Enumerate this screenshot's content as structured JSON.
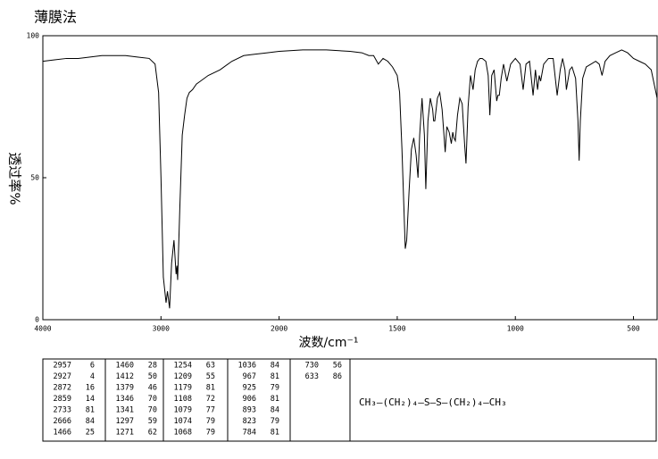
{
  "chart_data": {
    "type": "line",
    "title": "薄膜法",
    "ylabel": "透过率%",
    "xlabel": "波数/cm⁻¹",
    "xlim": [
      4000,
      400
    ],
    "x_scale_break": 2000,
    "xticks": [
      4000,
      3000,
      2000,
      1500,
      1000,
      500
    ],
    "ylim": [
      0,
      100
    ],
    "yticks": [
      0,
      50,
      100
    ],
    "color": "#000000",
    "x": [
      4000,
      3900,
      3800,
      3700,
      3600,
      3500,
      3400,
      3300,
      3200,
      3100,
      3050,
      3020,
      3000,
      2980,
      2957,
      2945,
      2927,
      2910,
      2890,
      2872,
      2865,
      2859,
      2840,
      2820,
      2800,
      2780,
      2760,
      2733,
      2700,
      2666,
      2600,
      2500,
      2400,
      2300,
      2200,
      2100,
      2000,
      1900,
      1800,
      1700,
      1650,
      1620,
      1600,
      1580,
      1560,
      1540,
      1520,
      1500,
      1490,
      1480,
      1466,
      1460,
      1450,
      1440,
      1430,
      1420,
      1412,
      1405,
      1395,
      1385,
      1379,
      1370,
      1360,
      1350,
      1346,
      1341,
      1330,
      1320,
      1310,
      1297,
      1290,
      1280,
      1271,
      1265,
      1260,
      1254,
      1245,
      1235,
      1225,
      1215,
      1209,
      1200,
      1190,
      1179,
      1170,
      1160,
      1150,
      1140,
      1125,
      1115,
      1108,
      1100,
      1090,
      1079,
      1074,
      1068,
      1060,
      1050,
      1036,
      1020,
      1000,
      980,
      967,
      955,
      940,
      925,
      915,
      906,
      899,
      893,
      880,
      860,
      840,
      823,
      810,
      800,
      790,
      784,
      770,
      760,
      745,
      735,
      730,
      725,
      715,
      700,
      680,
      660,
      645,
      633,
      620,
      600,
      575,
      550,
      525,
      500,
      475,
      450,
      425,
      400
    ],
    "values": [
      91,
      91.5,
      92,
      92,
      92.5,
      93,
      93,
      93,
      92.5,
      92,
      90,
      80,
      50,
      15,
      6,
      10,
      4,
      20,
      28,
      16,
      19,
      14,
      40,
      65,
      72,
      78,
      80,
      81,
      83,
      84,
      86,
      88,
      91,
      93,
      93.5,
      94,
      94.5,
      95,
      95,
      94.5,
      94,
      93,
      93,
      90,
      92,
      91,
      89,
      86,
      80,
      60,
      25,
      28,
      45,
      60,
      64,
      58,
      50,
      65,
      78,
      65,
      46,
      70,
      78,
      74,
      70,
      70,
      78,
      80,
      74,
      59,
      68,
      66,
      62,
      66,
      64,
      63,
      72,
      78,
      76,
      62,
      55,
      75,
      86,
      81,
      88,
      91,
      92,
      92,
      91,
      86,
      72,
      86,
      88,
      77,
      79,
      79,
      85,
      90,
      84,
      90,
      92,
      90,
      81,
      90,
      91,
      79,
      88,
      81,
      86,
      84,
      90,
      92,
      92,
      79,
      88,
      92,
      88,
      81,
      88,
      89,
      85,
      70,
      56,
      70,
      85,
      89,
      90,
      91,
      90,
      86,
      91,
      93,
      94,
      95,
      94,
      92,
      91,
      90,
      88,
      78
    ]
  },
  "peak_table": [
    [
      [
        2957,
        6
      ],
      [
        2927,
        4
      ],
      [
        2872,
        16
      ],
      [
        2859,
        14
      ],
      [
        2733,
        81
      ],
      [
        2666,
        84
      ],
      [
        1466,
        25
      ]
    ],
    [
      [
        1460,
        28
      ],
      [
        1412,
        50
      ],
      [
        1379,
        46
      ],
      [
        1346,
        70
      ],
      [
        1341,
        70
      ],
      [
        1297,
        59
      ],
      [
        1271,
        62
      ]
    ],
    [
      [
        1254,
        63
      ],
      [
        1209,
        55
      ],
      [
        1179,
        81
      ],
      [
        1108,
        72
      ],
      [
        1079,
        77
      ],
      [
        1074,
        79
      ],
      [
        1068,
        79
      ]
    ],
    [
      [
        1036,
        84
      ],
      [
        967,
        81
      ],
      [
        925,
        79
      ],
      [
        906,
        81
      ],
      [
        893,
        84
      ],
      [
        823,
        79
      ],
      [
        784,
        81
      ]
    ],
    [
      [
        730,
        56
      ],
      [
        633,
        86
      ]
    ]
  ],
  "structure": "CH₃—(CH₂)₄—S—S—(CH₂)₄—CH₃"
}
